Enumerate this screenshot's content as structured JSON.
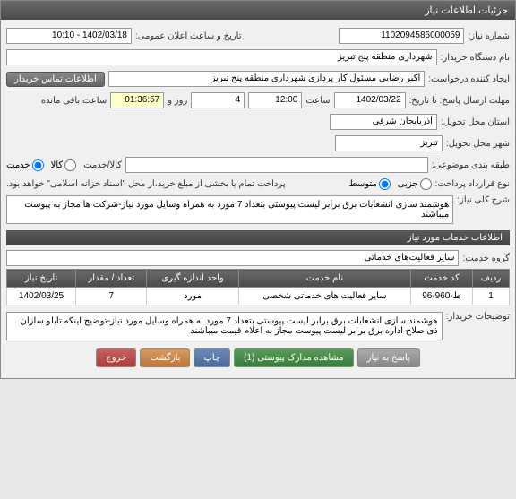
{
  "titlebar": "جزئیات اطلاعات نیاز",
  "fields": {
    "request_no_label": "شماره نیاز:",
    "request_no": "1102094586000059",
    "announce_label": "تاریخ و ساعت اعلان عمومی:",
    "announce_value": "1402/03/18 - 10:10",
    "buyer_label": "نام دستگاه خریدار:",
    "buyer_value": "شهرداری منطقه پنج تبریز",
    "creator_label": "ایجاد کننده درخواست:",
    "creator_value": "اکبر رضایی مسئول کار پردازی شهرداری منطقه پنج تبریز",
    "contact_btn": "اطلاعات تماس خریدار",
    "deadline_label": "مهلت ارسال پاسخ: تا تاریخ:",
    "deadline_date": "1402/03/22",
    "time_label": "ساعت",
    "deadline_time": "12:00",
    "day_label": "روز و",
    "days": "4",
    "remaining_time": "01:36:57",
    "remaining_label": "ساعت باقی مانده",
    "province_label": "استان محل تحویل:",
    "province_value": "آذربایجان شرقی",
    "city_label": "شهر محل تحویل:",
    "city_value": "تبریز",
    "category_label": "طبقه بندی موضوعی:",
    "category_value": "",
    "goods_label": "کالا/خدمت",
    "goods_opt1": "کالا",
    "goods_opt2": "خدمت",
    "contract_label": "نوع قرارداد پرداخت:",
    "contract_opt1": "جزیی",
    "contract_opt2": "متوسط",
    "payment_note": "پرداخت تمام یا بخشی از مبلغ خرید،از محل \"اسناد خزانه اسلامی\" خواهد بود.",
    "desc_label": "شرح کلی نیاز:",
    "desc_value": "هوشمند سازی انشعابات برق برابر لیست پیوستی بتعداد 7 مورد به همراه وسایل مورد نیاز-شرکت ها مجاز به پیوست میباشند",
    "services_header": "اطلاعات خدمات مورد نیاز",
    "service_group_label": "گروه خدمت:",
    "service_group_value": "سایر فعالیت‌های خدماتی",
    "buyer_notes_label": "توضیحات خریدار:",
    "buyer_notes_value": "هوشمند سازی انشعابات برق برابر لیست پیوستی بتعداد 7 مورد به همراه وسایل مورد نیاز-توضیح اینکه تابلو سازان ذی صلاح اداره برق برابر لیست پیوست مجاز به اعلام قیمت میباشند"
  },
  "table": {
    "headers": [
      "ردیف",
      "کد خدمت",
      "نام خدمت",
      "واحد اندازه گیری",
      "تعداد / مقدار",
      "تاریخ نیاز"
    ],
    "rows": [
      [
        "1",
        "ط-960-96",
        "سایر فعالیت های خدماتی شخصی",
        "مورد",
        "7",
        "1402/03/25"
      ]
    ]
  },
  "buttons": {
    "reply": "پاسخ به نیاز",
    "attachments": "مشاهده مدارک پیوستی (1)",
    "print": "چاپ",
    "back": "بازگشت",
    "exit": "خروج"
  }
}
